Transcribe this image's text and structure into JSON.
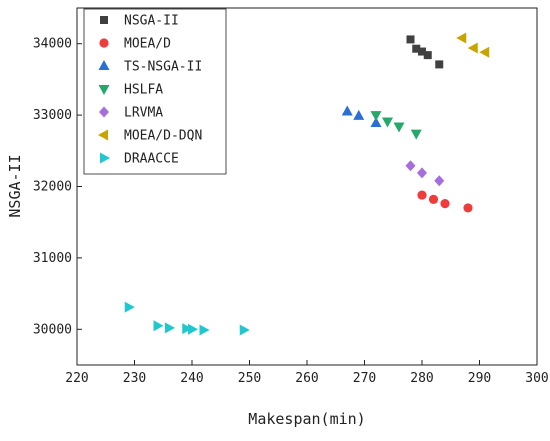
{
  "chart_data": {
    "type": "scatter",
    "title": "",
    "xlabel": "Makespan(min)",
    "ylabel": "NSGA-II",
    "xlim": [
      220,
      300
    ],
    "ylim": [
      29500,
      34500
    ],
    "x_ticks": [
      "220",
      "230",
      "240",
      "250",
      "260",
      "270",
      "280",
      "290",
      "300"
    ],
    "y_ticks": [
      "30000",
      "31000",
      "32000",
      "33000",
      "34000"
    ],
    "grid": false,
    "legend_position": "top-left",
    "series": [
      {
        "name": "NSGA-II",
        "marker": "square",
        "color": "#404040",
        "points": [
          [
            278,
            34060
          ],
          [
            279,
            33930
          ],
          [
            280,
            33890
          ],
          [
            281,
            33840
          ],
          [
            283,
            33710
          ]
        ]
      },
      {
        "name": "MOEA/D",
        "marker": "circle",
        "color": "#ef3b3b",
        "points": [
          [
            280,
            31880
          ],
          [
            282,
            31820
          ],
          [
            284,
            31760
          ],
          [
            288,
            31700
          ]
        ]
      },
      {
        "name": "TS-NSGA-II",
        "marker": "triangle-up",
        "color": "#2b6fd6",
        "points": [
          [
            267,
            33050
          ],
          [
            269,
            32990
          ],
          [
            272,
            32890
          ]
        ]
      },
      {
        "name": "HSLFA",
        "marker": "triangle-down",
        "color": "#25a86b",
        "points": [
          [
            272,
            33000
          ],
          [
            274,
            32910
          ],
          [
            276,
            32840
          ],
          [
            279,
            32740
          ]
        ]
      },
      {
        "name": "LRVMA",
        "marker": "diamond",
        "color": "#a66ddf",
        "points": [
          [
            278,
            32290
          ],
          [
            280,
            32190
          ],
          [
            283,
            32080
          ]
        ]
      },
      {
        "name": "MOEA/D-DQN",
        "marker": "triangle-left",
        "color": "#c9a400",
        "points": [
          [
            287,
            34080
          ],
          [
            289,
            33940
          ],
          [
            291,
            33880
          ]
        ]
      },
      {
        "name": "DRAACCE",
        "marker": "triangle-right",
        "color": "#1fc8cf",
        "points": [
          [
            229,
            30310
          ],
          [
            234,
            30050
          ],
          [
            236,
            30020
          ],
          [
            239,
            30010
          ],
          [
            240,
            30000
          ],
          [
            242,
            29990
          ],
          [
            249,
            29990
          ]
        ]
      }
    ]
  }
}
